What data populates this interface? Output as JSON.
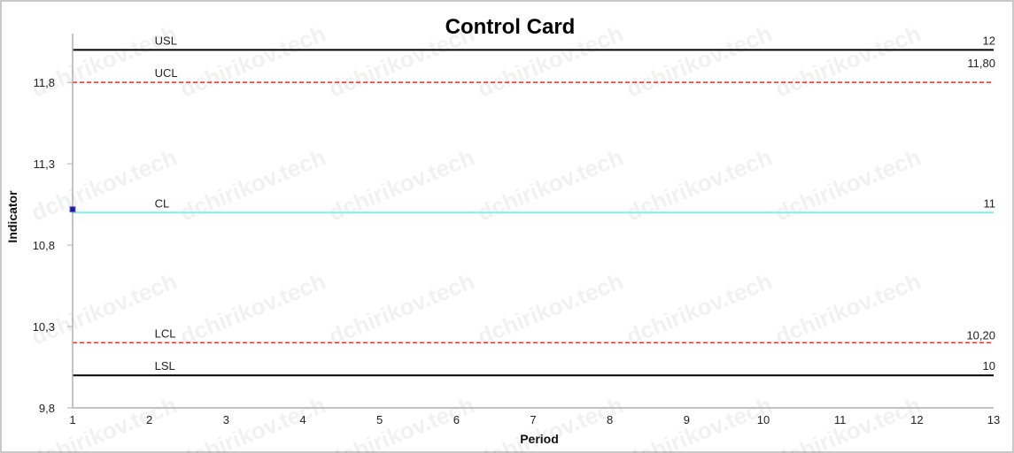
{
  "chart_data": {
    "type": "line",
    "title": "Control Card",
    "xlabel": "Period",
    "ylabel": "Indicator",
    "xlim": [
      1,
      13
    ],
    "ylim": [
      9.8,
      12.1
    ],
    "x_ticks": [
      1,
      2,
      3,
      4,
      5,
      6,
      7,
      8,
      9,
      10,
      11,
      12,
      13
    ],
    "y_ticks": [
      {
        "value": 9.8,
        "label": "9,8"
      },
      {
        "value": 10.3,
        "label": "10,3"
      },
      {
        "value": 10.8,
        "label": "10,8"
      },
      {
        "value": 11.3,
        "label": "11,3"
      },
      {
        "value": 11.8,
        "label": "11,8"
      }
    ],
    "reference_lines": [
      {
        "name": "USL",
        "value": 12,
        "value_label": "12",
        "color": "#000000",
        "style": "solid"
      },
      {
        "name": "UCL",
        "value": 11.8,
        "value_label": "11,80",
        "color": "#ff2020",
        "style": "dashed"
      },
      {
        "name": "CL",
        "value": 11,
        "value_label": "11",
        "color": "#7ff0f0",
        "style": "solid"
      },
      {
        "name": "LCL",
        "value": 10.2,
        "value_label": "10,20",
        "color": "#ff2020",
        "style": "dashed"
      },
      {
        "name": "LSL",
        "value": 10,
        "value_label": "10",
        "color": "#000000",
        "style": "solid"
      }
    ],
    "series": [
      {
        "x": [
          1
        ],
        "values": [
          11.02
        ],
        "color": "#1a1aa0",
        "marker": "square"
      }
    ],
    "grid": false,
    "watermark": "dchirikov.tech"
  }
}
